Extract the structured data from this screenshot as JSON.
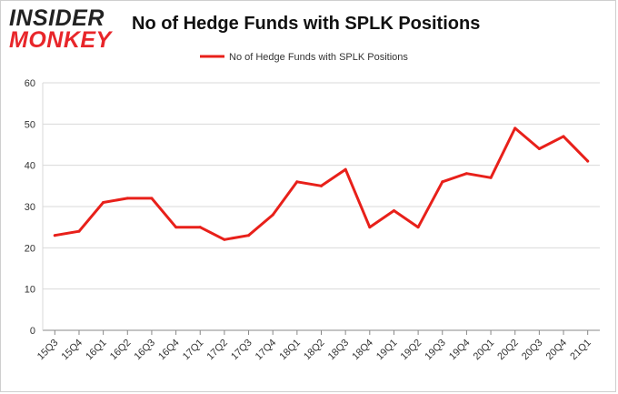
{
  "logo": {
    "top": "INSIDER",
    "bottom": "MONKEY"
  },
  "chart_data": {
    "type": "line",
    "title": "No of Hedge Funds with SPLK Positions",
    "categories": [
      "15Q3",
      "15Q4",
      "16Q1",
      "16Q2",
      "16Q3",
      "16Q4",
      "17Q1",
      "17Q2",
      "17Q3",
      "17Q4",
      "18Q1",
      "18Q2",
      "18Q3",
      "18Q4",
      "19Q1",
      "19Q2",
      "19Q3",
      "19Q4",
      "20Q1",
      "20Q2",
      "20Q3",
      "20Q4",
      "21Q1"
    ],
    "series": [
      {
        "name": "No of Hedge Funds with SPLK Positions",
        "color": "#e8201a",
        "values": [
          23,
          24,
          31,
          32,
          32,
          25,
          25,
          22,
          23,
          28,
          36,
          35,
          39,
          25,
          29,
          25,
          36,
          38,
          37,
          49,
          44,
          47,
          41
        ]
      }
    ],
    "yticks": [
      0,
      10,
      20,
      30,
      40,
      50,
      60
    ],
    "ylim": [
      0,
      60
    ],
    "grid": true,
    "legend": "top-center"
  }
}
